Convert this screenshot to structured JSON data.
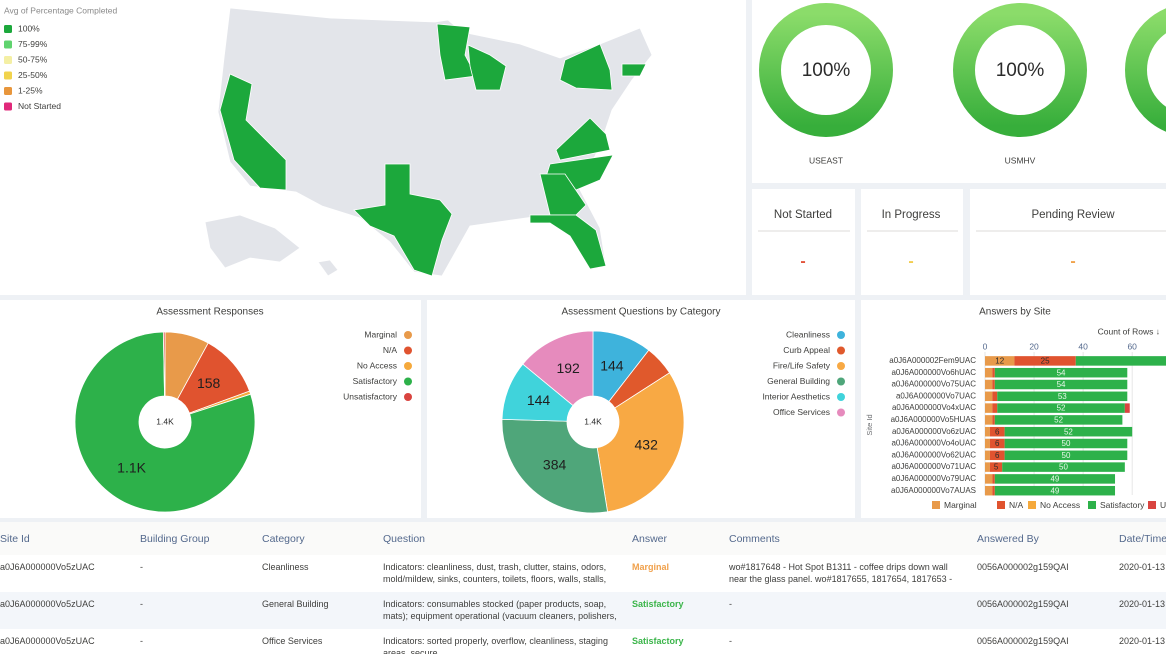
{
  "map": {
    "legend_title": "Avg of Percentage Completed",
    "legend": [
      {
        "label": "100%",
        "color": "#1ca83c"
      },
      {
        "label": "75-99%",
        "color": "#5fd36e"
      },
      {
        "label": "50-75%",
        "color": "#f4efa4"
      },
      {
        "label": "25-50%",
        "color": "#f1d34c"
      },
      {
        "label": "1-25%",
        "color": "#e8963c"
      },
      {
        "label": "Not Started",
        "color": "#e0287a"
      }
    ]
  },
  "gauges": [
    {
      "value": "100%",
      "label": "USEAST"
    },
    {
      "value": "100%",
      "label": "USMHV"
    }
  ],
  "status_cards": [
    {
      "title": "Not Started",
      "value": "-",
      "color": "#e2533b"
    },
    {
      "title": "In Progress",
      "value": "-",
      "color": "#f2cd4f"
    },
    {
      "title": "Pending Review",
      "value": "-",
      "color": "#f0a34c"
    }
  ],
  "chart_data": [
    {
      "type": "donut",
      "title": "Assessment Responses",
      "center_label": "1.4K",
      "categories": [
        "Marginal",
        "N/A",
        "No Access",
        "Satisfactory",
        "Unsatisfactory"
      ],
      "values": [
        110,
        158,
        8,
        1100,
        4
      ],
      "value_labels": [
        null,
        "158",
        null,
        "1.1K",
        null
      ],
      "colors": [
        "#e89a4a",
        "#e0532f",
        "#f5a93c",
        "#2db14a",
        "#d9443f"
      ],
      "legend": "right"
    },
    {
      "type": "donut",
      "title": "Assessment Questions by Category",
      "center_label": "1.4K",
      "categories": [
        "Cleanliness",
        "Curb Appeal",
        "Fire/Life Safety",
        "General Building",
        "Interior Aesthetics",
        "Office Services"
      ],
      "values": [
        144,
        74,
        432,
        384,
        144,
        192
      ],
      "value_labels": [
        "144",
        null,
        "432",
        "384",
        "144",
        "192"
      ],
      "colors": [
        "#3eb3dc",
        "#e0592c",
        "#f8a944",
        "#4fa67a",
        "#40d3db",
        "#e68bbd"
      ],
      "legend": "right"
    },
    {
      "type": "bar",
      "orientation": "horizontal",
      "stacked": true,
      "title": "Answers by Site",
      "xlabel": "Count of Rows ↓",
      "ylabel": "Site Id",
      "categories": [
        "a0J6A000002Fem9UAC",
        "a0J6A000000Vo6hUAC",
        "a0J6A000000Vo75UAC",
        "a0J6A000000Vo7UAC",
        "a0J6A000000Vo4xUAC",
        "a0J6A000000Vo5HUAS",
        "a0J6A000000Vo6zUAC",
        "a0J6A000000Vo4oUAC",
        "a0J6A000000Vo62UAC",
        "a0J6A000000Vo71UAC",
        "a0J6A000000Vo79UAC",
        "a0J6A000000Vo7AUAS"
      ],
      "series": [
        {
          "name": "Marginal",
          "color": "#e89a4a",
          "values": [
            12,
            3,
            3,
            3,
            3,
            3,
            2,
            2,
            2,
            2,
            3,
            3
          ],
          "value_labels": [
            "12",
            null,
            null,
            null,
            null,
            null,
            null,
            null,
            null,
            null,
            null,
            null
          ]
        },
        {
          "name": "N/A",
          "color": "#e0532f",
          "values": [
            25,
            1,
            1,
            2,
            2,
            1,
            6,
            6,
            6,
            5,
            1,
            1
          ],
          "value_labels": [
            "25",
            null,
            null,
            null,
            null,
            null,
            "6",
            "6",
            "6",
            "5",
            null,
            null
          ]
        },
        {
          "name": "No Access",
          "color": "#f5a93c",
          "values": [
            0,
            0,
            0,
            0,
            0,
            0,
            0,
            0,
            0,
            0,
            0,
            0
          ]
        },
        {
          "name": "Satisfactory",
          "color": "#2db14a",
          "values": [
            40,
            54,
            54,
            53,
            52,
            52,
            52,
            50,
            50,
            50,
            49,
            49
          ],
          "value_labels": [
            null,
            "54",
            "54",
            "53",
            "52",
            "52",
            "52",
            "50",
            "50",
            "50",
            "49",
            "49"
          ]
        },
        {
          "name": "Unsatisfactory",
          "color": "#d9443f",
          "values": [
            0,
            0,
            0,
            0,
            2,
            0,
            0,
            0,
            0,
            0,
            0,
            0
          ]
        }
      ],
      "xlim": [
        0,
        75
      ],
      "xticks": [
        0,
        20,
        40,
        60
      ],
      "grid": true
    }
  ],
  "table": {
    "columns": [
      "Site Id",
      "Building Group",
      "Category",
      "Question",
      "Answer",
      "Comments",
      "Answered By",
      "Date/Time"
    ],
    "rows": [
      [
        "a0J6A000000Vo5zUAC",
        "-",
        "Cleanliness",
        "Indicators: cleanliness, dust, trash, clutter, stains, odors, mold/mildew, sinks, counters, toilets, floors, walls, stalls,",
        "Marginal",
        "wo#1817648 - Hot Spot B1311 - coffee drips down wall near the glass panel. wo#1817655, 1817654, 1817653 -",
        "0056A000002g159QAI",
        "2020-01-13"
      ],
      [
        "a0J6A000000Vo5zUAC",
        "-",
        "General Building",
        "Indicators: consumables stocked (paper products, soap, mats); equipment operational (vacuum cleaners, polishers,",
        "Satisfactory",
        "-",
        "0056A000002g159QAI",
        "2020-01-13"
      ],
      [
        "a0J6A000000Vo5zUAC",
        "-",
        "Office Services",
        "Indicators: sorted properly, overflow, cleanliness, staging areas, secure",
        "Satisfactory",
        "-",
        "0056A000002g159QAI",
        "2020-01-13"
      ]
    ],
    "answer_colors": {
      "Marginal": "#f0a04a",
      "Satisfactory": "#3bb54a"
    }
  }
}
